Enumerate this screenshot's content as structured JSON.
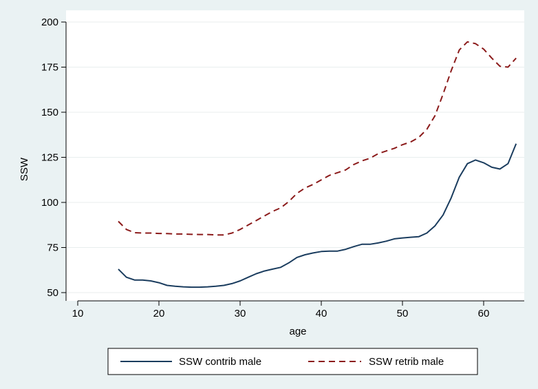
{
  "chart_data": {
    "type": "line",
    "title": "",
    "xlabel": "age",
    "ylabel": "SSW",
    "xlim": [
      10,
      65
    ],
    "ylim": [
      45,
      205
    ],
    "xticks": [
      10,
      20,
      30,
      40,
      50,
      60
    ],
    "yticks": [
      50,
      75,
      100,
      125,
      150,
      175,
      200
    ],
    "grid": "y",
    "legend_position": "bottom",
    "series": [
      {
        "name": "SSW contrib male",
        "color": "#1a3c5e",
        "dash": "solid",
        "x": [
          15,
          16,
          17,
          18,
          19,
          20,
          21,
          22,
          23,
          24,
          25,
          26,
          27,
          28,
          29,
          30,
          31,
          32,
          33,
          34,
          35,
          36,
          37,
          38,
          39,
          40,
          41,
          42,
          43,
          44,
          45,
          46,
          47,
          48,
          49,
          50,
          51,
          52,
          53,
          54,
          55,
          56,
          57,
          58,
          59,
          60,
          61,
          62,
          63,
          64
        ],
        "y": [
          63,
          58.5,
          57,
          57,
          56.5,
          55.5,
          54,
          53.5,
          53.2,
          53,
          53,
          53.2,
          53.5,
          54,
          55,
          56.5,
          58.5,
          60.5,
          62,
          63,
          64,
          66.5,
          69.5,
          71,
          72,
          72.8,
          73,
          73,
          74,
          75.5,
          76.8,
          76.8,
          77.5,
          78.5,
          79.8,
          80.3,
          80.7,
          81,
          83,
          87,
          93,
          102.5,
          114,
          121.5,
          123.5,
          122,
          119.5,
          118.5,
          121.5,
          132.5
        ]
      },
      {
        "name": "SSW retrib male",
        "color": "#8b1a1a",
        "dash": "dashed",
        "x": [
          15,
          16,
          17,
          18,
          19,
          20,
          21,
          22,
          23,
          24,
          25,
          26,
          27,
          28,
          29,
          30,
          31,
          32,
          33,
          34,
          35,
          36,
          37,
          38,
          39,
          40,
          41,
          42,
          43,
          44,
          45,
          46,
          47,
          48,
          49,
          50,
          51,
          52,
          53,
          54,
          55,
          56,
          57,
          58,
          59,
          60,
          61,
          62,
          63,
          64
        ],
        "y": [
          89.5,
          85,
          83.2,
          83,
          83,
          82.8,
          82.7,
          82.5,
          82.5,
          82.3,
          82.2,
          82.2,
          82,
          82,
          83,
          85,
          87.5,
          90,
          92.5,
          95,
          97,
          100.5,
          105,
          108,
          110,
          112.5,
          115,
          116.5,
          118,
          121,
          123,
          124.5,
          127,
          128.5,
          130,
          132,
          133.5,
          136,
          140.5,
          148,
          160,
          173,
          184.5,
          189,
          188,
          185,
          180,
          175.5,
          175,
          180
        ]
      }
    ]
  }
}
